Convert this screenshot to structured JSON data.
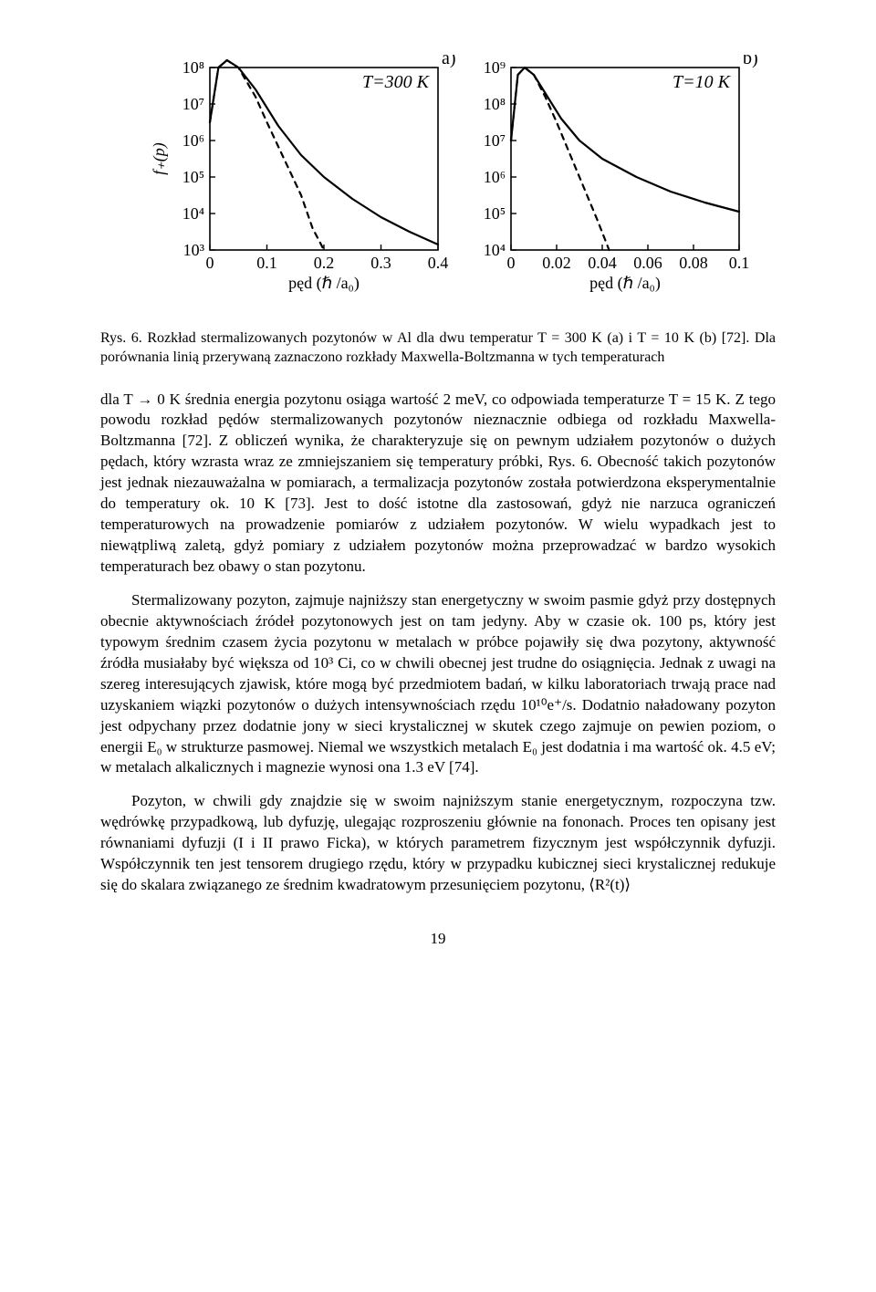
{
  "figure": {
    "panel_a": {
      "type": "line",
      "title": "T=300 K",
      "title_fontsize": 20,
      "panel_label": "a)",
      "panel_label_fontsize": 20,
      "xlabel": "pęd (ℏ /a₀)",
      "ylabel": "f₊(p)",
      "xlim": [
        0,
        0.4
      ],
      "xticks": [
        0,
        0.1,
        0.2,
        0.3,
        0.4
      ],
      "ylim_log": [
        3,
        8
      ],
      "yticks_labels": [
        "10³",
        "10⁴",
        "10⁵",
        "10⁶",
        "10⁷",
        "10⁸"
      ],
      "series": [
        {
          "name": "solid",
          "dash": "none",
          "color": "#000000",
          "width": 2.2,
          "points": [
            [
              0,
              6.5
            ],
            [
              0.015,
              8.0
            ],
            [
              0.03,
              8.2
            ],
            [
              0.05,
              8.0
            ],
            [
              0.08,
              7.4
            ],
            [
              0.12,
              6.4
            ],
            [
              0.16,
              5.6
            ],
            [
              0.2,
              5.0
            ],
            [
              0.25,
              4.4
            ],
            [
              0.3,
              3.9
            ],
            [
              0.35,
              3.5
            ],
            [
              0.4,
              3.15
            ]
          ]
        },
        {
          "name": "dashed",
          "dash": "6,6",
          "color": "#000000",
          "width": 2.2,
          "points": [
            [
              0,
              6.5
            ],
            [
              0.015,
              8.0
            ],
            [
              0.03,
              8.2
            ],
            [
              0.05,
              8.0
            ],
            [
              0.08,
              7.2
            ],
            [
              0.1,
              6.5
            ],
            [
              0.13,
              5.5
            ],
            [
              0.16,
              4.5
            ],
            [
              0.18,
              3.6
            ],
            [
              0.2,
              3.0
            ]
          ]
        }
      ],
      "axis_color": "#000000",
      "tick_fontsize": 18,
      "label_fontsize": 18,
      "background_color": "#ffffff"
    },
    "panel_b": {
      "type": "line",
      "title": "T=10 K",
      "title_fontsize": 20,
      "panel_label": "b)",
      "panel_label_fontsize": 20,
      "xlabel": "pęd (ℏ /a₀)",
      "xlim": [
        0,
        0.1
      ],
      "xticks": [
        0,
        0.02,
        0.04,
        0.06,
        0.08,
        0.1
      ],
      "ylim_log": [
        4,
        9
      ],
      "yticks_labels": [
        "10⁴",
        "10⁵",
        "10⁶",
        "10⁷",
        "10⁸",
        "10⁹"
      ],
      "series": [
        {
          "name": "solid",
          "dash": "none",
          "color": "#000000",
          "width": 2.2,
          "points": [
            [
              0,
              7.0
            ],
            [
              0.003,
              8.8
            ],
            [
              0.006,
              9.0
            ],
            [
              0.01,
              8.8
            ],
            [
              0.015,
              8.3
            ],
            [
              0.022,
              7.6
            ],
            [
              0.03,
              7.0
            ],
            [
              0.04,
              6.5
            ],
            [
              0.055,
              6.0
            ],
            [
              0.07,
              5.6
            ],
            [
              0.085,
              5.3
            ],
            [
              0.1,
              5.05
            ]
          ]
        },
        {
          "name": "dashed",
          "dash": "6,6",
          "color": "#000000",
          "width": 2.2,
          "points": [
            [
              0,
              7.0
            ],
            [
              0.003,
              8.8
            ],
            [
              0.006,
              9.0
            ],
            [
              0.01,
              8.8
            ],
            [
              0.015,
              8.2
            ],
            [
              0.02,
              7.5
            ],
            [
              0.026,
              6.6
            ],
            [
              0.032,
              5.7
            ],
            [
              0.038,
              4.8
            ],
            [
              0.043,
              4.0
            ]
          ]
        }
      ],
      "axis_color": "#000000",
      "tick_fontsize": 18,
      "label_fontsize": 18,
      "background_color": "#ffffff"
    }
  },
  "caption": "Rys. 6. Rozkład stermalizowanych pozytonów w Al dla dwu temperatur T = 300 K (a) i T = 10 K (b) [72]. Dla porównania linią przerywaną zaznaczono rozkłady Maxwella-Boltzmanna w tych temperaturach",
  "paragraphs": {
    "p1": "dla T → 0 K średnia energia pozytonu osiąga wartość 2 meV, co odpowiada temperaturze T = 15 K. Z tego powodu rozkład pędów stermalizowanych pozytonów nieznacznie odbiega od rozkładu Maxwella-Boltzmanna [72]. Z obliczeń wynika, że charakteryzuje się on pewnym udziałem pozytonów o dużych pędach, który wzrasta wraz ze zmniejszaniem się temperatury próbki, Rys. 6. Obecność takich pozytonów jest jednak niezauważalna w pomiarach, a termalizacja pozytonów została potwierdzona eksperymentalnie do temperatury ok. 10 K [73]. Jest to dość istotne dla zastosowań, gdyż nie narzuca ograniczeń temperaturowych na prowadzenie pomiarów z udziałem pozytonów. W wielu wypadkach jest to niewątpliwą zaletą, gdyż pomiary z udziałem pozytonów można przeprowadzać w bardzo wysokich temperaturach bez obawy o stan pozytonu.",
    "p2": "Stermalizowany pozyton, zajmuje najniższy stan energetyczny w swoim pasmie gdyż przy dostępnych obecnie aktywnościach źródeł pozytonowych jest on tam jedyny. Aby w czasie ok. 100 ps, który jest typowym średnim czasem życia pozytonu w metalach w próbce pojawiły się dwa pozytony, aktywność źródła musiałaby być większa od 10³ Ci, co w chwili obecnej jest trudne do osiągnięcia. Jednak z uwagi na szereg interesujących zjawisk, które mogą być przedmiotem badań, w kilku laboratoriach trwają prace nad uzyskaniem wiązki pozytonów o dużych intensywnościach rzędu 10¹⁰e⁺/s. Dodatnio naładowany pozyton jest odpychany przez dodatnie jony w sieci krystalicznej w skutek czego zajmuje on pewien poziom, o energii E₀ w strukturze pasmowej. Niemal we wszystkich metalach E₀ jest dodatnia i ma wartość ok. 4.5 eV; w metalach alkalicznych i magnezie wynosi ona 1.3 eV [74].",
    "p3": "Pozyton, w chwili gdy znajdzie się w swoim najniższym stanie energetycznym, rozpoczyna tzw. wędrówkę przypadkową, lub dyfuzję, ulegając rozproszeniu głównie na fononach. Proces ten opisany jest równaniami dyfuzji (I i II prawo Ficka), w których parametrem fizycznym jest współczynnik dyfuzji. Współczynnik ten jest tensorem drugiego rzędu, który w przypadku kubicznej sieci krystalicznej redukuje się do skalara związanego ze średnim kwadratowym przesunięciem pozytonu, ⟨R²(t)⟩"
  },
  "pagenum": "19"
}
